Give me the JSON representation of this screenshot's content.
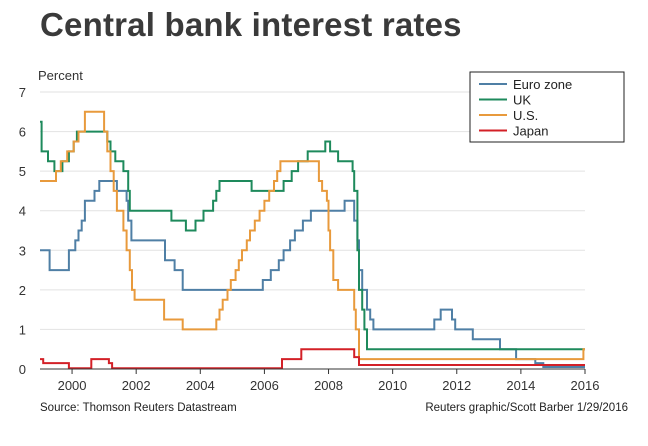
{
  "title": "Central bank interest rates",
  "ylabel": "Percent",
  "source": "Source: Thomson Reuters Datastream",
  "credit": "Reuters graphic/Scott Barber 1/29/2016",
  "chart_data": {
    "type": "line",
    "title": "Central bank interest rates",
    "ylabel": "Percent",
    "xlabel": "",
    "xlim": [
      1999,
      2016
    ],
    "ylim": [
      0,
      7
    ],
    "xticks": [
      2000,
      2002,
      2004,
      2006,
      2008,
      2010,
      2012,
      2014,
      2016
    ],
    "yticks": [
      0,
      1,
      2,
      3,
      4,
      5,
      6,
      7
    ],
    "grid": "horizontal",
    "legend_position": "top-right",
    "series": [
      {
        "name": "Euro zone",
        "color": "#4f7fa5",
        "step": true,
        "points": [
          [
            1999.0,
            3.0
          ],
          [
            1999.3,
            2.5
          ],
          [
            1999.9,
            3.0
          ],
          [
            2000.1,
            3.25
          ],
          [
            2000.2,
            3.5
          ],
          [
            2000.3,
            3.75
          ],
          [
            2000.4,
            4.25
          ],
          [
            2000.7,
            4.5
          ],
          [
            2000.85,
            4.75
          ],
          [
            2001.4,
            4.5
          ],
          [
            2001.7,
            4.25
          ],
          [
            2001.75,
            3.75
          ],
          [
            2001.85,
            3.25
          ],
          [
            2002.9,
            2.75
          ],
          [
            2003.2,
            2.5
          ],
          [
            2003.45,
            2.0
          ],
          [
            2005.95,
            2.25
          ],
          [
            2006.2,
            2.5
          ],
          [
            2006.45,
            2.75
          ],
          [
            2006.6,
            3.0
          ],
          [
            2006.8,
            3.25
          ],
          [
            2006.95,
            3.5
          ],
          [
            2007.2,
            3.75
          ],
          [
            2007.45,
            4.0
          ],
          [
            2008.5,
            4.25
          ],
          [
            2008.8,
            3.75
          ],
          [
            2008.9,
            3.25
          ],
          [
            2008.95,
            2.5
          ],
          [
            2009.05,
            2.0
          ],
          [
            2009.2,
            1.5
          ],
          [
            2009.3,
            1.25
          ],
          [
            2009.4,
            1.0
          ],
          [
            2011.3,
            1.25
          ],
          [
            2011.5,
            1.5
          ],
          [
            2011.85,
            1.25
          ],
          [
            2011.95,
            1.0
          ],
          [
            2012.5,
            0.75
          ],
          [
            2013.35,
            0.5
          ],
          [
            2013.85,
            0.25
          ],
          [
            2014.45,
            0.15
          ],
          [
            2014.7,
            0.05
          ],
          [
            2016.0,
            0.05
          ]
        ]
      },
      {
        "name": "UK",
        "color": "#1e8a5c",
        "step": true,
        "points": [
          [
            1999.0,
            6.25
          ],
          [
            1999.05,
            5.5
          ],
          [
            1999.25,
            5.25
          ],
          [
            1999.45,
            5.0
          ],
          [
            1999.7,
            5.25
          ],
          [
            1999.9,
            5.5
          ],
          [
            2000.05,
            5.75
          ],
          [
            2000.15,
            6.0
          ],
          [
            2001.1,
            5.75
          ],
          [
            2001.2,
            5.5
          ],
          [
            2001.35,
            5.25
          ],
          [
            2001.6,
            5.0
          ],
          [
            2001.75,
            4.5
          ],
          [
            2001.8,
            4.0
          ],
          [
            2003.1,
            3.75
          ],
          [
            2003.55,
            3.5
          ],
          [
            2003.85,
            3.75
          ],
          [
            2004.1,
            4.0
          ],
          [
            2004.4,
            4.25
          ],
          [
            2004.5,
            4.5
          ],
          [
            2004.6,
            4.75
          ],
          [
            2005.6,
            4.5
          ],
          [
            2006.6,
            4.75
          ],
          [
            2006.85,
            5.0
          ],
          [
            2007.05,
            5.25
          ],
          [
            2007.35,
            5.5
          ],
          [
            2007.9,
            5.75
          ],
          [
            2008.05,
            5.5
          ],
          [
            2008.3,
            5.25
          ],
          [
            2008.75,
            5.0
          ],
          [
            2008.8,
            4.5
          ],
          [
            2008.9,
            3.0
          ],
          [
            2008.95,
            2.0
          ],
          [
            2009.05,
            1.5
          ],
          [
            2009.12,
            1.0
          ],
          [
            2009.2,
            0.5
          ],
          [
            2016.0,
            0.5
          ]
        ]
      },
      {
        "name": "U.S.",
        "color": "#e89a3c",
        "step": true,
        "points": [
          [
            1999.0,
            4.75
          ],
          [
            1999.5,
            5.0
          ],
          [
            1999.65,
            5.25
          ],
          [
            1999.85,
            5.5
          ],
          [
            2000.05,
            5.75
          ],
          [
            2000.2,
            6.0
          ],
          [
            2000.4,
            6.5
          ],
          [
            2001.0,
            6.0
          ],
          [
            2001.1,
            5.5
          ],
          [
            2001.2,
            5.0
          ],
          [
            2001.3,
            4.5
          ],
          [
            2001.4,
            4.0
          ],
          [
            2001.6,
            3.5
          ],
          [
            2001.7,
            3.0
          ],
          [
            2001.8,
            2.5
          ],
          [
            2001.87,
            2.0
          ],
          [
            2001.95,
            1.75
          ],
          [
            2002.87,
            1.25
          ],
          [
            2003.45,
            1.0
          ],
          [
            2004.5,
            1.25
          ],
          [
            2004.6,
            1.5
          ],
          [
            2004.7,
            1.75
          ],
          [
            2004.85,
            2.0
          ],
          [
            2004.95,
            2.25
          ],
          [
            2005.1,
            2.5
          ],
          [
            2005.2,
            2.75
          ],
          [
            2005.3,
            3.0
          ],
          [
            2005.45,
            3.25
          ],
          [
            2005.55,
            3.5
          ],
          [
            2005.7,
            3.75
          ],
          [
            2005.85,
            4.0
          ],
          [
            2006.0,
            4.25
          ],
          [
            2006.15,
            4.5
          ],
          [
            2006.3,
            4.75
          ],
          [
            2006.4,
            5.0
          ],
          [
            2006.5,
            5.25
          ],
          [
            2007.7,
            4.75
          ],
          [
            2007.8,
            4.5
          ],
          [
            2007.95,
            4.25
          ],
          [
            2008.0,
            3.5
          ],
          [
            2008.05,
            3.0
          ],
          [
            2008.15,
            2.25
          ],
          [
            2008.3,
            2.0
          ],
          [
            2008.8,
            1.5
          ],
          [
            2008.85,
            1.0
          ],
          [
            2008.95,
            0.25
          ],
          [
            2015.95,
            0.5
          ],
          [
            2016.0,
            0.5
          ]
        ]
      },
      {
        "name": "Japan",
        "color": "#d32027",
        "step": true,
        "points": [
          [
            1999.0,
            0.25
          ],
          [
            1999.1,
            0.15
          ],
          [
            1999.9,
            0.02
          ],
          [
            2000.6,
            0.25
          ],
          [
            2001.15,
            0.15
          ],
          [
            2001.25,
            0.02
          ],
          [
            2006.55,
            0.25
          ],
          [
            2007.15,
            0.5
          ],
          [
            2008.8,
            0.3
          ],
          [
            2008.95,
            0.1
          ],
          [
            2016.0,
            0.1
          ]
        ]
      }
    ]
  }
}
